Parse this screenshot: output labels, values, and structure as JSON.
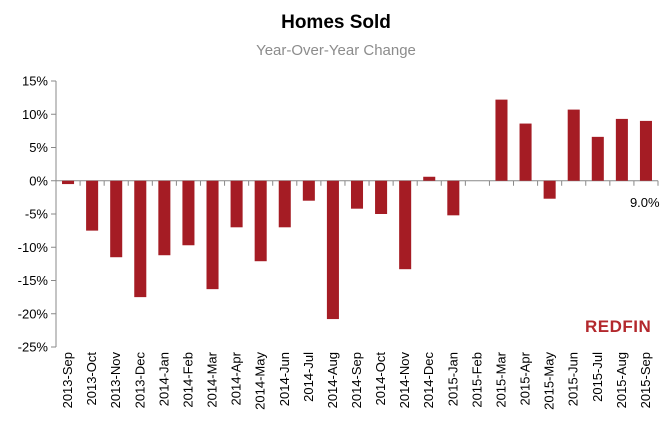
{
  "chart_data": {
    "type": "bar",
    "title": "Homes Sold",
    "subtitle": "Year-Over-Year Change",
    "categories": [
      "2013-Sep",
      "2013-Oct",
      "2013-Nov",
      "2013-Dec",
      "2014-Jan",
      "2014-Feb",
      "2014-Mar",
      "2014-Apr",
      "2014-May",
      "2014-Jun",
      "2014-Jul",
      "2014-Aug",
      "2014-Sep",
      "2014-Oct",
      "2014-Nov",
      "2014-Dec",
      "2015-Jan",
      "2015-Feb",
      "2015-Mar",
      "2015-Apr",
      "2015-May",
      "2015-Jun",
      "2015-Jul",
      "2015-Aug",
      "2015-Sep"
    ],
    "values": [
      -0.5,
      -7.5,
      -11.5,
      -17.5,
      -11.2,
      -9.7,
      -16.3,
      -7.0,
      -12.1,
      -7.0,
      -3.0,
      -20.8,
      -4.2,
      -5.0,
      -13.3,
      0.6,
      -5.2,
      0.0,
      12.2,
      8.6,
      -2.7,
      10.7,
      6.6,
      9.3,
      9.0
    ],
    "ylim": [
      -25,
      15
    ],
    "yticks": [
      -25,
      -20,
      -15,
      -10,
      -5,
      0,
      5,
      10,
      15
    ],
    "ytick_labels": [
      "-25%",
      "-20%",
      "-15%",
      "-10%",
      "-5%",
      "0%",
      "5%",
      "10%",
      "15%"
    ],
    "bar_color": "#a51c24",
    "data_labels": [
      {
        "category": "2015-Sep",
        "text": "9.0%"
      }
    ],
    "grid": false,
    "legend": "none"
  },
  "brand": {
    "logo_text": "REDFIN",
    "color": "#b3282d"
  }
}
